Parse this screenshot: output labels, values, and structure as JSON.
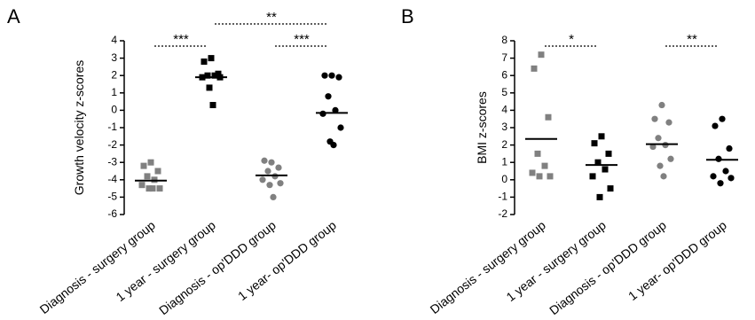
{
  "chart_data": [
    {
      "type": "strip",
      "panel_label": "A",
      "y_label": "Growth velocity z-scores",
      "categories": [
        "Diagnosis - surgery group",
        "1 year - surgery group",
        "Diagnosis - op'DDD group",
        "1 year- op'DDD group"
      ],
      "groups": [
        {
          "color": "#808080",
          "marker": "square",
          "values": [
            -3.0,
            -3.2,
            -3.5,
            -3.8,
            -4.0,
            -4.3,
            -4.5,
            -4.5,
            -4.5
          ],
          "mean": -4.05
        },
        {
          "color": "#000000",
          "marker": "square",
          "values": [
            3.0,
            2.8,
            2.1,
            2.0,
            2.0,
            1.9,
            1.9,
            1.3,
            0.3
          ],
          "mean": 1.9
        },
        {
          "color": "#808080",
          "marker": "circle",
          "values": [
            -3.0,
            -2.9,
            -3.3,
            -3.5,
            -3.8,
            -4.0,
            -4.2,
            -4.3,
            -5.0
          ],
          "mean": -3.75
        },
        {
          "color": "#000000",
          "marker": "circle",
          "values": [
            2.0,
            2.0,
            1.9,
            0.8,
            0.0,
            -0.2,
            -1.0,
            -1.8,
            -2.0
          ],
          "mean": -0.15
        }
      ],
      "ylim": [
        -6,
        4
      ],
      "yticks": [
        -6,
        -5,
        -4,
        -3,
        -2,
        -1,
        0,
        1,
        2,
        3,
        4
      ],
      "annotations": [
        {
          "text": "***",
          "from": 0,
          "to": 1
        },
        {
          "text": "***",
          "from": 2,
          "to": 3
        },
        {
          "text": "**",
          "from": 1,
          "to": 3
        }
      ]
    },
    {
      "type": "strip",
      "panel_label": "B",
      "y_label": "BMI  z-scores",
      "categories": [
        "Diagnosis - surgery group",
        "1 year - surgery group",
        "Diagnosis - op'DDD group",
        "1 year- op'DDD group"
      ],
      "groups": [
        {
          "color": "#808080",
          "marker": "square",
          "values": [
            7.2,
            6.4,
            3.6,
            1.5,
            0.8,
            0.4,
            0.2,
            0.2
          ],
          "mean": 2.35
        },
        {
          "color": "#000000",
          "marker": "square",
          "values": [
            2.5,
            2.1,
            1.5,
            1.0,
            0.6,
            0.2,
            -0.5,
            -1.0
          ],
          "mean": 0.85
        },
        {
          "color": "#808080",
          "marker": "circle",
          "values": [
            4.3,
            3.5,
            3.3,
            2.4,
            2.0,
            1.9,
            1.2,
            0.8,
            0.2
          ],
          "mean": 2.05
        },
        {
          "color": "#000000",
          "marker": "circle",
          "values": [
            3.5,
            3.1,
            1.8,
            1.2,
            0.5,
            0.2,
            0.1,
            -0.2
          ],
          "mean": 1.15
        }
      ],
      "ylim": [
        -2,
        8
      ],
      "yticks": [
        -2,
        -1,
        0,
        1,
        2,
        3,
        4,
        5,
        6,
        7,
        8
      ],
      "annotations": [
        {
          "text": "*",
          "from": 0,
          "to": 1
        },
        {
          "text": "**",
          "from": 2,
          "to": 3
        }
      ]
    }
  ]
}
